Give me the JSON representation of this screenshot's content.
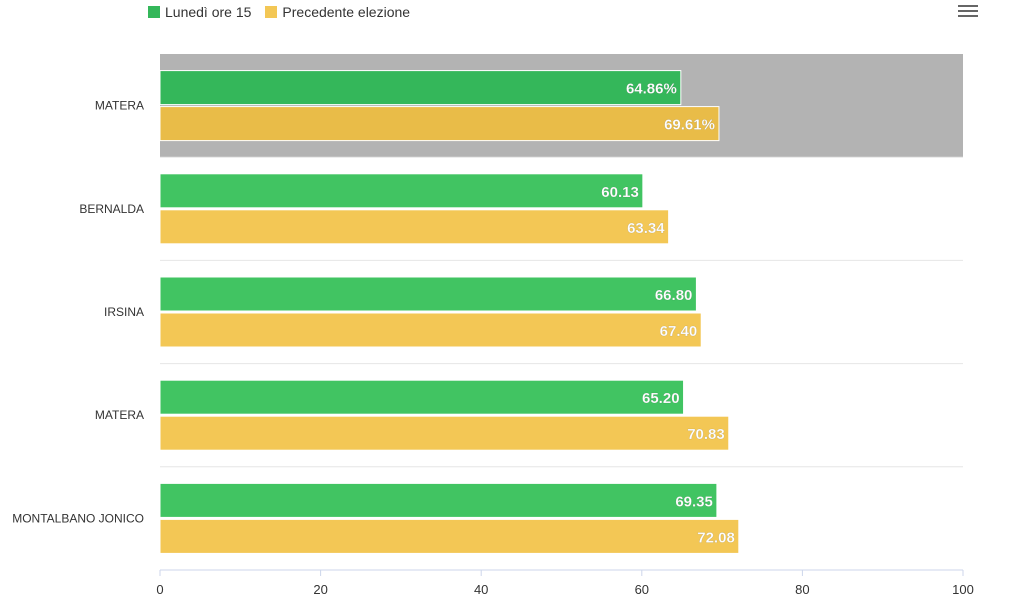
{
  "legend": {
    "items": [
      {
        "label": "Lunedì ore 15",
        "color": "#34b75a"
      },
      {
        "label": "Precedente elezione",
        "color": "#f3c755"
      }
    ]
  },
  "menu": {
    "icon": "hamburger-menu-icon"
  },
  "colors": {
    "highlight_band": "#b3b3b3",
    "highlight_green": "#34b75a",
    "highlight_yellow": "#e9bc48",
    "green": "#41c462",
    "yellow": "#f3c755",
    "grid": "#e6e6e6",
    "axis_label": "#333333"
  },
  "chart_data": {
    "type": "bar",
    "orientation": "horizontal",
    "categories": [
      "MATERA",
      "BERNALDA",
      "IRSINA",
      "MATERA",
      "MONTALBANO JONICO"
    ],
    "series": [
      {
        "name": "Lunedì ore 15",
        "values": [
          64.86,
          60.13,
          66.8,
          65.2,
          69.35
        ],
        "labels": [
          "64.86%",
          "60.13",
          "66.80",
          "65.20",
          "69.35"
        ]
      },
      {
        "name": "Precedente elezione",
        "values": [
          69.61,
          63.34,
          67.4,
          70.83,
          72.08
        ],
        "labels": [
          "69.61%",
          "63.34",
          "67.40",
          "70.83",
          "72.08"
        ]
      }
    ],
    "xlim": [
      0,
      100
    ],
    "xticks": [
      "0",
      "20",
      "40",
      "60",
      "80",
      "100"
    ],
    "highlighted_category_index": 0,
    "grid": true,
    "legend_position": "top-left"
  }
}
